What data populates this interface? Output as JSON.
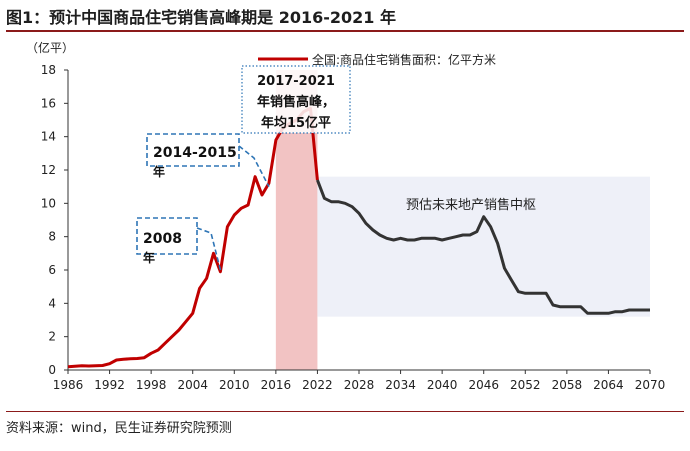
{
  "title": "图1：预计中国商品住宅销售高峰期是 2016-2021 年",
  "source": "资料来源：wind，民生证券研究院预测",
  "chart_data": {
    "type": "line",
    "ylabel": "（亿平）",
    "xlim": [
      1986,
      2070
    ],
    "ylim": [
      0,
      18
    ],
    "y_ticks": [
      0,
      2,
      4,
      6,
      8,
      10,
      12,
      14,
      16,
      18
    ],
    "x_ticks": [
      1986,
      1992,
      1998,
      2004,
      2010,
      2016,
      2022,
      2028,
      2034,
      2040,
      2046,
      2052,
      2058,
      2064,
      2070
    ],
    "x_tick_labels": [
      "1986",
      "1992",
      "1998",
      "2004",
      "2010",
      "2016",
      "2022",
      "2028",
      "2034",
      "2040",
      "2046",
      "2052",
      "2058",
      "2064",
      "2070"
    ],
    "legend": {
      "label": "全国:商品住宅销售面积：亿平方米",
      "position": "top-right",
      "color": "#c00000"
    },
    "series": [
      {
        "name": "全国:商品住宅销售面积：亿平方米",
        "role": "actual",
        "color": "#c00000",
        "points": [
          [
            1986,
            0.2
          ],
          [
            1987,
            0.22
          ],
          [
            1988,
            0.25
          ],
          [
            1989,
            0.24
          ],
          [
            1990,
            0.25
          ],
          [
            1991,
            0.27
          ],
          [
            1992,
            0.38
          ],
          [
            1993,
            0.6
          ],
          [
            1994,
            0.65
          ],
          [
            1995,
            0.67
          ],
          [
            1996,
            0.69
          ],
          [
            1997,
            0.74
          ],
          [
            1998,
            1.0
          ],
          [
            1999,
            1.2
          ],
          [
            2000,
            1.6
          ],
          [
            2001,
            2.0
          ],
          [
            2002,
            2.4
          ],
          [
            2003,
            2.9
          ],
          [
            2004,
            3.4
          ],
          [
            2005,
            4.9
          ],
          [
            2006,
            5.5
          ],
          [
            2007,
            7.0
          ],
          [
            2008,
            5.9
          ],
          [
            2009,
            8.6
          ],
          [
            2010,
            9.3
          ],
          [
            2011,
            9.7
          ],
          [
            2012,
            9.9
          ],
          [
            2013,
            11.6
          ],
          [
            2014,
            10.5
          ],
          [
            2015,
            11.2
          ],
          [
            2016,
            13.8
          ],
          [
            2017,
            14.5
          ],
          [
            2018,
            14.8
          ],
          [
            2019,
            15.0
          ],
          [
            2020,
            15.5
          ],
          [
            2021,
            15.7
          ],
          [
            2022,
            11.4
          ]
        ]
      },
      {
        "name": "预估未来地产销售中枢",
        "role": "forecast",
        "color": "#333333",
        "points": [
          [
            2022,
            11.4
          ],
          [
            2023,
            10.3
          ],
          [
            2024,
            10.1
          ],
          [
            2025,
            10.1
          ],
          [
            2026,
            10.0
          ],
          [
            2027,
            9.8
          ],
          [
            2028,
            9.4
          ],
          [
            2029,
            8.8
          ],
          [
            2030,
            8.4
          ],
          [
            2031,
            8.1
          ],
          [
            2032,
            7.9
          ],
          [
            2033,
            7.8
          ],
          [
            2034,
            7.9
          ],
          [
            2035,
            7.8
          ],
          [
            2036,
            7.8
          ],
          [
            2037,
            7.9
          ],
          [
            2038,
            7.9
          ],
          [
            2039,
            7.9
          ],
          [
            2040,
            7.8
          ],
          [
            2041,
            7.9
          ],
          [
            2042,
            8.0
          ],
          [
            2043,
            8.1
          ],
          [
            2044,
            8.1
          ],
          [
            2045,
            8.3
          ],
          [
            2046,
            9.2
          ],
          [
            2047,
            8.6
          ],
          [
            2048,
            7.6
          ],
          [
            2049,
            6.1
          ],
          [
            2050,
            5.4
          ],
          [
            2051,
            4.7
          ],
          [
            2052,
            4.6
          ],
          [
            2053,
            4.6
          ],
          [
            2054,
            4.6
          ],
          [
            2055,
            4.6
          ],
          [
            2056,
            3.9
          ],
          [
            2057,
            3.8
          ],
          [
            2058,
            3.8
          ],
          [
            2059,
            3.8
          ],
          [
            2060,
            3.8
          ],
          [
            2061,
            3.4
          ],
          [
            2062,
            3.4
          ],
          [
            2063,
            3.4
          ],
          [
            2064,
            3.4
          ],
          [
            2065,
            3.5
          ],
          [
            2066,
            3.5
          ],
          [
            2067,
            3.6
          ],
          [
            2068,
            3.6
          ],
          [
            2069,
            3.6
          ],
          [
            2070,
            3.6
          ]
        ]
      }
    ],
    "shaded_regions": [
      {
        "x_start": 2016,
        "x_end": 2022,
        "color": "#f2c3c3",
        "style": "fill"
      },
      {
        "x_start": 2022,
        "x_end": 2070,
        "y_start": 3.2,
        "y_end": 11.6,
        "color": "#eef0f8",
        "style": "fill"
      }
    ],
    "annotations": [
      {
        "id": "ann-2008",
        "lines": [
          "2008",
          "年"
        ],
        "color": "#2e75b6",
        "style": "dashed",
        "target": [
          2008,
          6.0
        ]
      },
      {
        "id": "ann-2014",
        "lines": [
          "2014-2015",
          "年"
        ],
        "color": "#2e75b6",
        "style": "dashed",
        "target": [
          2015,
          11.0
        ]
      },
      {
        "id": "ann-2017",
        "lines": [
          "2017-2021",
          "年销售高峰，",
          "年均15亿平"
        ],
        "color": "#2e75b6",
        "style": "dotted"
      },
      {
        "id": "ann-forecast",
        "lines": [
          "预估未来地产销售中枢"
        ]
      }
    ]
  }
}
